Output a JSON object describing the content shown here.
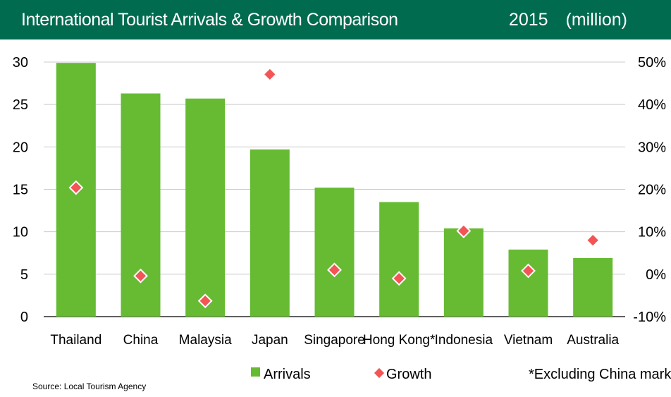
{
  "header": {
    "title": "International Tourist Arrivals & Growth Comparison",
    "year": "2015",
    "unit": "(million)"
  },
  "chart_data": {
    "type": "bar",
    "categories": [
      "Thailand",
      "China",
      "Malaysia",
      "Japan",
      "Singapore",
      "Hong Kong*",
      "Indonesia",
      "Vietnam",
      "Australia"
    ],
    "series": [
      {
        "name": "Arrivals",
        "kind": "bar",
        "axis": "left",
        "color": "#66bb33",
        "values": [
          29.9,
          26.3,
          25.7,
          19.7,
          15.2,
          13.5,
          10.4,
          7.9,
          6.9
        ]
      },
      {
        "name": "Growth",
        "kind": "scatter",
        "axis": "right",
        "color": "#f25555",
        "values": [
          20.4,
          -0.4,
          -6.3,
          47.1,
          1.0,
          -1.0,
          10.2,
          0.8,
          8.0
        ]
      }
    ],
    "y_left": {
      "min": 0,
      "max": 30,
      "ticks": [
        "0",
        "5",
        "10",
        "15",
        "20",
        "25",
        "30"
      ]
    },
    "y_right": {
      "min": -10,
      "max": 50,
      "ticks": [
        "-10%",
        "0%",
        "10%",
        "20%",
        "30%",
        "40%",
        "50%"
      ]
    },
    "grid": true,
    "legend_position": "bottom",
    "note": "*Excluding China market"
  },
  "source": "Source: Local Tourism Agency"
}
